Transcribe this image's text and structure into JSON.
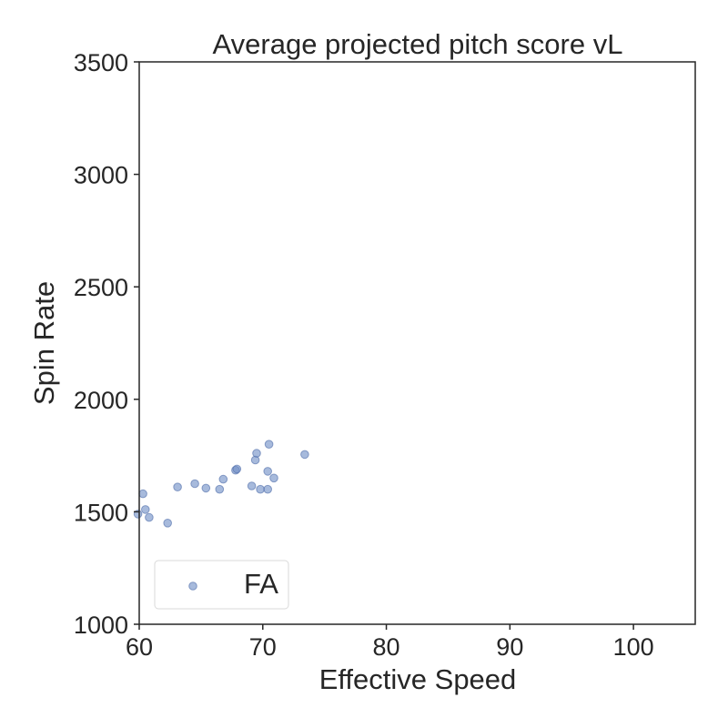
{
  "chart_data": {
    "type": "scatter",
    "title": "Average projected pitch score vL",
    "xlabel": "Effective Speed",
    "ylabel": "Spin Rate",
    "xlim": [
      60,
      105
    ],
    "ylim": [
      1000,
      3500
    ],
    "xticks": [
      60,
      70,
      80,
      90,
      100
    ],
    "yticks": [
      1000,
      1500,
      2000,
      2500,
      3000,
      3500
    ],
    "grid": false,
    "legend_position": "lower-left",
    "marker_color": "#6d8cc4",
    "series": [
      {
        "name": "FA",
        "points": [
          {
            "x": 59.9,
            "y": 1490
          },
          {
            "x": 60.3,
            "y": 1580
          },
          {
            "x": 60.5,
            "y": 1510
          },
          {
            "x": 60.8,
            "y": 1475
          },
          {
            "x": 62.3,
            "y": 1450
          },
          {
            "x": 63.1,
            "y": 1610
          },
          {
            "x": 64.5,
            "y": 1625
          },
          {
            "x": 65.4,
            "y": 1605
          },
          {
            "x": 66.5,
            "y": 1600
          },
          {
            "x": 66.8,
            "y": 1645
          },
          {
            "x": 67.8,
            "y": 1685
          },
          {
            "x": 67.9,
            "y": 1690
          },
          {
            "x": 69.1,
            "y": 1615
          },
          {
            "x": 69.4,
            "y": 1730
          },
          {
            "x": 69.5,
            "y": 1760
          },
          {
            "x": 69.8,
            "y": 1600
          },
          {
            "x": 70.4,
            "y": 1600
          },
          {
            "x": 70.4,
            "y": 1680
          },
          {
            "x": 70.5,
            "y": 1800
          },
          {
            "x": 70.9,
            "y": 1650
          },
          {
            "x": 73.4,
            "y": 1755
          }
        ]
      }
    ]
  }
}
